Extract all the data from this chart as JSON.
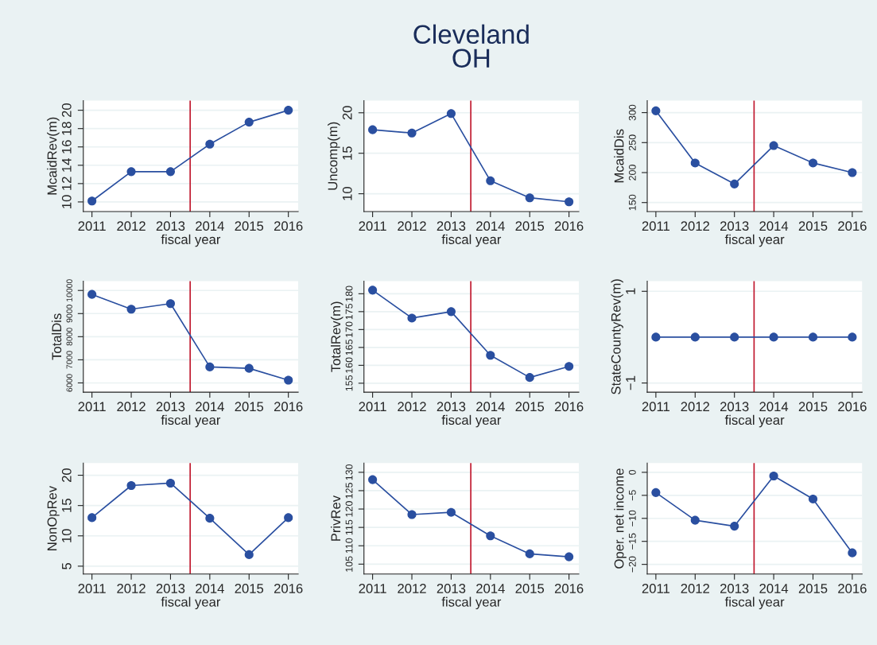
{
  "chart_data": [
    {
      "type": "line",
      "xlabel": "fiscal year",
      "ylabel": "McaidRev(m)",
      "x": [
        2011,
        2012,
        2013,
        2014,
        2015,
        2016
      ],
      "series": [
        {
          "color": "#2a4fa0",
          "values": [
            10.1,
            13.3,
            13.3,
            16.3,
            18.7,
            20.0
          ]
        }
      ],
      "xlim": [
        2010.78,
        2016.25
      ],
      "xticks": [
        2011,
        2012,
        2013,
        2014,
        2015,
        2016
      ],
      "ylim": [
        8.95,
        21.05
      ],
      "yticks": [
        10,
        12,
        14,
        16,
        18,
        20
      ],
      "ref_lines": [
        {
          "axis": "x",
          "value": 2013.5,
          "color": "#c0182e"
        }
      ],
      "grid": "y",
      "marker": "circle"
    },
    {
      "type": "line",
      "title": "Cleveland\nOH",
      "xlabel": "fiscal year",
      "ylabel": "Uncomp(m)",
      "x": [
        2011,
        2012,
        2013,
        2014,
        2015,
        2016
      ],
      "series": [
        {
          "color": "#2a4fa0",
          "values": [
            17.9,
            17.5,
            19.9,
            11.6,
            9.5,
            9.0
          ]
        }
      ],
      "xlim": [
        2010.78,
        2016.25
      ],
      "xticks": [
        2011,
        2012,
        2013,
        2014,
        2015,
        2016
      ],
      "ylim": [
        7.8,
        21.5
      ],
      "yticks": [
        10,
        15,
        20
      ],
      "ref_lines": [
        {
          "axis": "x",
          "value": 2013.5,
          "color": "#c0182e"
        }
      ],
      "grid": "y",
      "marker": "circle"
    },
    {
      "type": "line",
      "xlabel": "fiscal year",
      "ylabel": "McaidDis",
      "x": [
        2011,
        2012,
        2013,
        2014,
        2015,
        2016
      ],
      "series": [
        {
          "color": "#2a4fa0",
          "values": [
            303,
            216,
            181,
            245,
            216,
            200
          ]
        }
      ],
      "xlim": [
        2010.78,
        2016.25
      ],
      "xticks": [
        2011,
        2012,
        2013,
        2014,
        2015,
        2016
      ],
      "ylim": [
        135,
        320
      ],
      "yticks": [
        150,
        200,
        250,
        300
      ],
      "ref_lines": [
        {
          "axis": "x",
          "value": 2013.5,
          "color": "#c0182e"
        }
      ],
      "grid": "y",
      "marker": "circle"
    },
    {
      "type": "line",
      "xlabel": "fiscal year",
      "ylabel": "TotalDis",
      "x": [
        2011,
        2012,
        2013,
        2014,
        2015,
        2016
      ],
      "series": [
        {
          "color": "#2a4fa0",
          "values": [
            9830,
            9190,
            9430,
            6690,
            6630,
            6120
          ]
        }
      ],
      "xlim": [
        2010.78,
        2016.25
      ],
      "xticks": [
        2011,
        2012,
        2013,
        2014,
        2015,
        2016
      ],
      "ylim": [
        5600,
        10400
      ],
      "yticks": [
        6000,
        7000,
        8000,
        9000,
        10000
      ],
      "ref_lines": [
        {
          "axis": "x",
          "value": 2013.5,
          "color": "#c0182e"
        }
      ],
      "grid": "y",
      "marker": "circle"
    },
    {
      "type": "line",
      "xlabel": "fiscal year",
      "ylabel": "TotalRev(m)",
      "x": [
        2011,
        2012,
        2013,
        2014,
        2015,
        2016
      ],
      "series": [
        {
          "color": "#2a4fa0",
          "values": [
            181.0,
            173.2,
            175.0,
            162.8,
            156.6,
            159.7
          ]
        }
      ],
      "xlim": [
        2010.78,
        2016.25
      ],
      "xticks": [
        2011,
        2012,
        2013,
        2014,
        2015,
        2016
      ],
      "ylim": [
        152.5,
        183.5
      ],
      "yticks": [
        155,
        160,
        165,
        170,
        175,
        180
      ],
      "ref_lines": [
        {
          "axis": "x",
          "value": 2013.5,
          "color": "#c0182e"
        }
      ],
      "grid": "y",
      "marker": "circle"
    },
    {
      "type": "line",
      "xlabel": "fiscal year",
      "ylabel": "StateCountyRev(m)",
      "x": [
        2011,
        2012,
        2013,
        2014,
        2015,
        2016
      ],
      "series": [
        {
          "color": "#2a4fa0",
          "values": [
            0,
            0,
            0,
            0,
            0,
            0
          ]
        }
      ],
      "xlim": [
        2010.78,
        2016.25
      ],
      "xticks": [
        2011,
        2012,
        2013,
        2014,
        2015,
        2016
      ],
      "ylim": [
        -1.2,
        1.22
      ],
      "yticks": [
        {
          "value": -1,
          "label": "−1"
        },
        1
      ],
      "ref_lines": [
        {
          "axis": "x",
          "value": 2013.5,
          "color": "#c0182e"
        }
      ],
      "grid": "y",
      "marker": "circle"
    },
    {
      "type": "line",
      "xlabel": "fiscal year",
      "ylabel": "NonOpRev",
      "x": [
        2011,
        2012,
        2013,
        2014,
        2015,
        2016
      ],
      "series": [
        {
          "color": "#2a4fa0",
          "values": [
            13.0,
            18.3,
            18.7,
            12.9,
            6.9,
            13.0
          ]
        }
      ],
      "xlim": [
        2010.78,
        2016.25
      ],
      "xticks": [
        2011,
        2012,
        2013,
        2014,
        2015,
        2016
      ],
      "ylim": [
        3.7,
        22
      ],
      "yticks": [
        5,
        10,
        15,
        20
      ],
      "ref_lines": [
        {
          "axis": "x",
          "value": 2013.5,
          "color": "#c0182e"
        }
      ],
      "grid": "y",
      "marker": "circle"
    },
    {
      "type": "line",
      "xlabel": "fiscal year",
      "ylabel": "PrivRev",
      "x": [
        2011,
        2012,
        2013,
        2014,
        2015,
        2016
      ],
      "series": [
        {
          "color": "#2a4fa0",
          "values": [
            128.0,
            118.5,
            119.1,
            112.7,
            107.8,
            107.0
          ]
        }
      ],
      "xlim": [
        2010.78,
        2016.25
      ],
      "xticks": [
        2011,
        2012,
        2013,
        2014,
        2015,
        2016
      ],
      "ylim": [
        102.3,
        132.5
      ],
      "yticks": [
        105,
        110,
        115,
        120,
        125,
        130
      ],
      "ref_lines": [
        {
          "axis": "x",
          "value": 2013.5,
          "color": "#c0182e"
        }
      ],
      "grid": "y",
      "marker": "circle"
    },
    {
      "type": "line",
      "xlabel": "fiscal year",
      "ylabel": "Oper. net income",
      "x": [
        2011,
        2012,
        2013,
        2014,
        2015,
        2016
      ],
      "series": [
        {
          "color": "#2a4fa0",
          "values": [
            -4.4,
            -10.4,
            -11.7,
            -0.8,
            -5.8,
            -17.5
          ]
        }
      ],
      "xlim": [
        2010.78,
        2016.25
      ],
      "xticks": [
        2011,
        2012,
        2013,
        2014,
        2015,
        2016
      ],
      "ylim": [
        -22.1,
        2.0
      ],
      "yticks": [
        {
          "value": -20,
          "label": "−20"
        },
        {
          "value": -15,
          "label": "−15"
        },
        {
          "value": -10,
          "label": "−10"
        },
        {
          "value": -5,
          "label": "−5"
        },
        0
      ],
      "ref_lines": [
        {
          "axis": "x",
          "value": 2013.5,
          "color": "#c0182e"
        }
      ],
      "grid": "y",
      "marker": "circle"
    }
  ]
}
